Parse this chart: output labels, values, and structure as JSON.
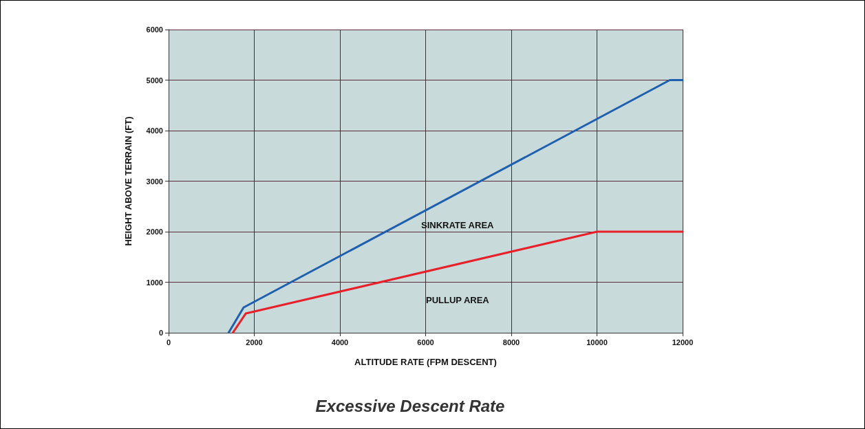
{
  "chart_data": {
    "type": "line",
    "title": "Excessive Descent Rate",
    "xlabel": "ALTITUDE RATE (FPM DESCENT)",
    "ylabel": "HEIGHT ABOVE TERRAIN (FT)",
    "xlim": [
      0,
      12000
    ],
    "xticks": [
      0,
      2000,
      4000,
      6000,
      8000,
      10000,
      12000
    ],
    "ylim": [
      0,
      6000
    ],
    "yticks": [
      0,
      1000,
      2000,
      3000,
      4000,
      5000,
      6000
    ],
    "grid": true,
    "marker": "none",
    "line_style": "solid",
    "series": [
      {
        "color": "#1f5fb0",
        "x": [
          1400,
          1750,
          11700,
          12000
        ],
        "values": [
          0,
          500,
          5000,
          5000
        ]
      },
      {
        "color": "#e8202a",
        "x": [
          1500,
          1800,
          10000,
          12000
        ],
        "values": [
          0,
          380,
          2000,
          2000
        ]
      }
    ],
    "annotations": [
      "SINKRATE AREA",
      "PULLUP AREA"
    ]
  }
}
